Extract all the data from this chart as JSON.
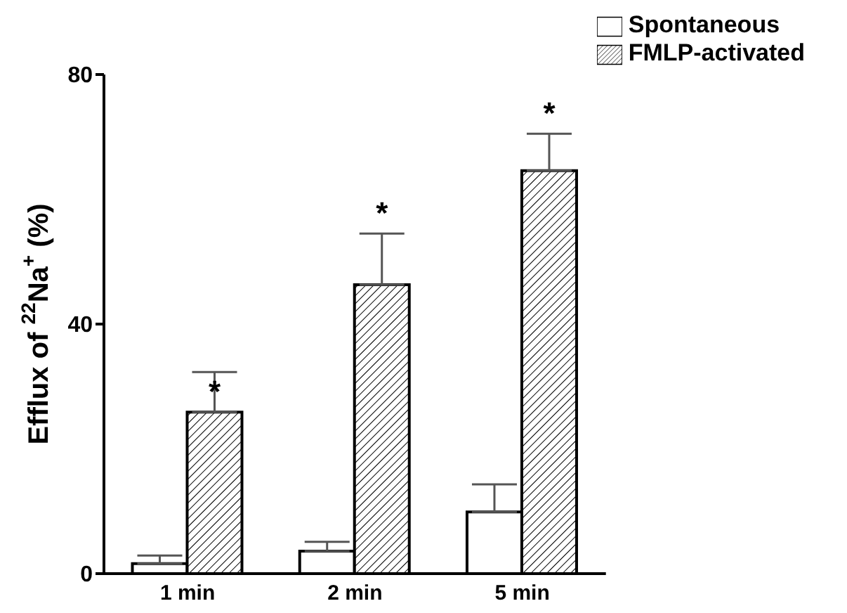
{
  "chart_data": {
    "type": "bar",
    "ylabel": "Efflux of $^{22}$Na$^{+}$ (%)",
    "categories": [
      "1 min",
      "2 min",
      "5 min"
    ],
    "series": [
      {
        "name": "Spontaneous",
        "color": "#ffffff",
        "values": [
          1.6,
          3.6,
          9.9
        ],
        "errors": [
          [
            1.6,
            2.9
          ],
          [
            3.6,
            5.1
          ],
          [
            9.9,
            14.3
          ]
        ]
      },
      {
        "name": "FMLP-activated",
        "color": "#000000",
        "values": [
          25.9,
          46.3,
          64.6
        ],
        "errors": [
          [
            25.9,
            32.3
          ],
          [
            46.3,
            54.5
          ],
          [
            64.6,
            70.5
          ]
        ]
      }
    ],
    "ylim": [
      0,
      80
    ],
    "yticks": [
      0,
      40,
      80
    ],
    "grid": false,
    "legend": "top right",
    "annotations": [
      {
        "text": "*",
        "x": "1 min",
        "y": 25.9
      },
      {
        "text": "*",
        "x": "2 min",
        "y": 54.5
      },
      {
        "text": "*",
        "x": "5 min",
        "y": 70.5
      }
    ]
  }
}
